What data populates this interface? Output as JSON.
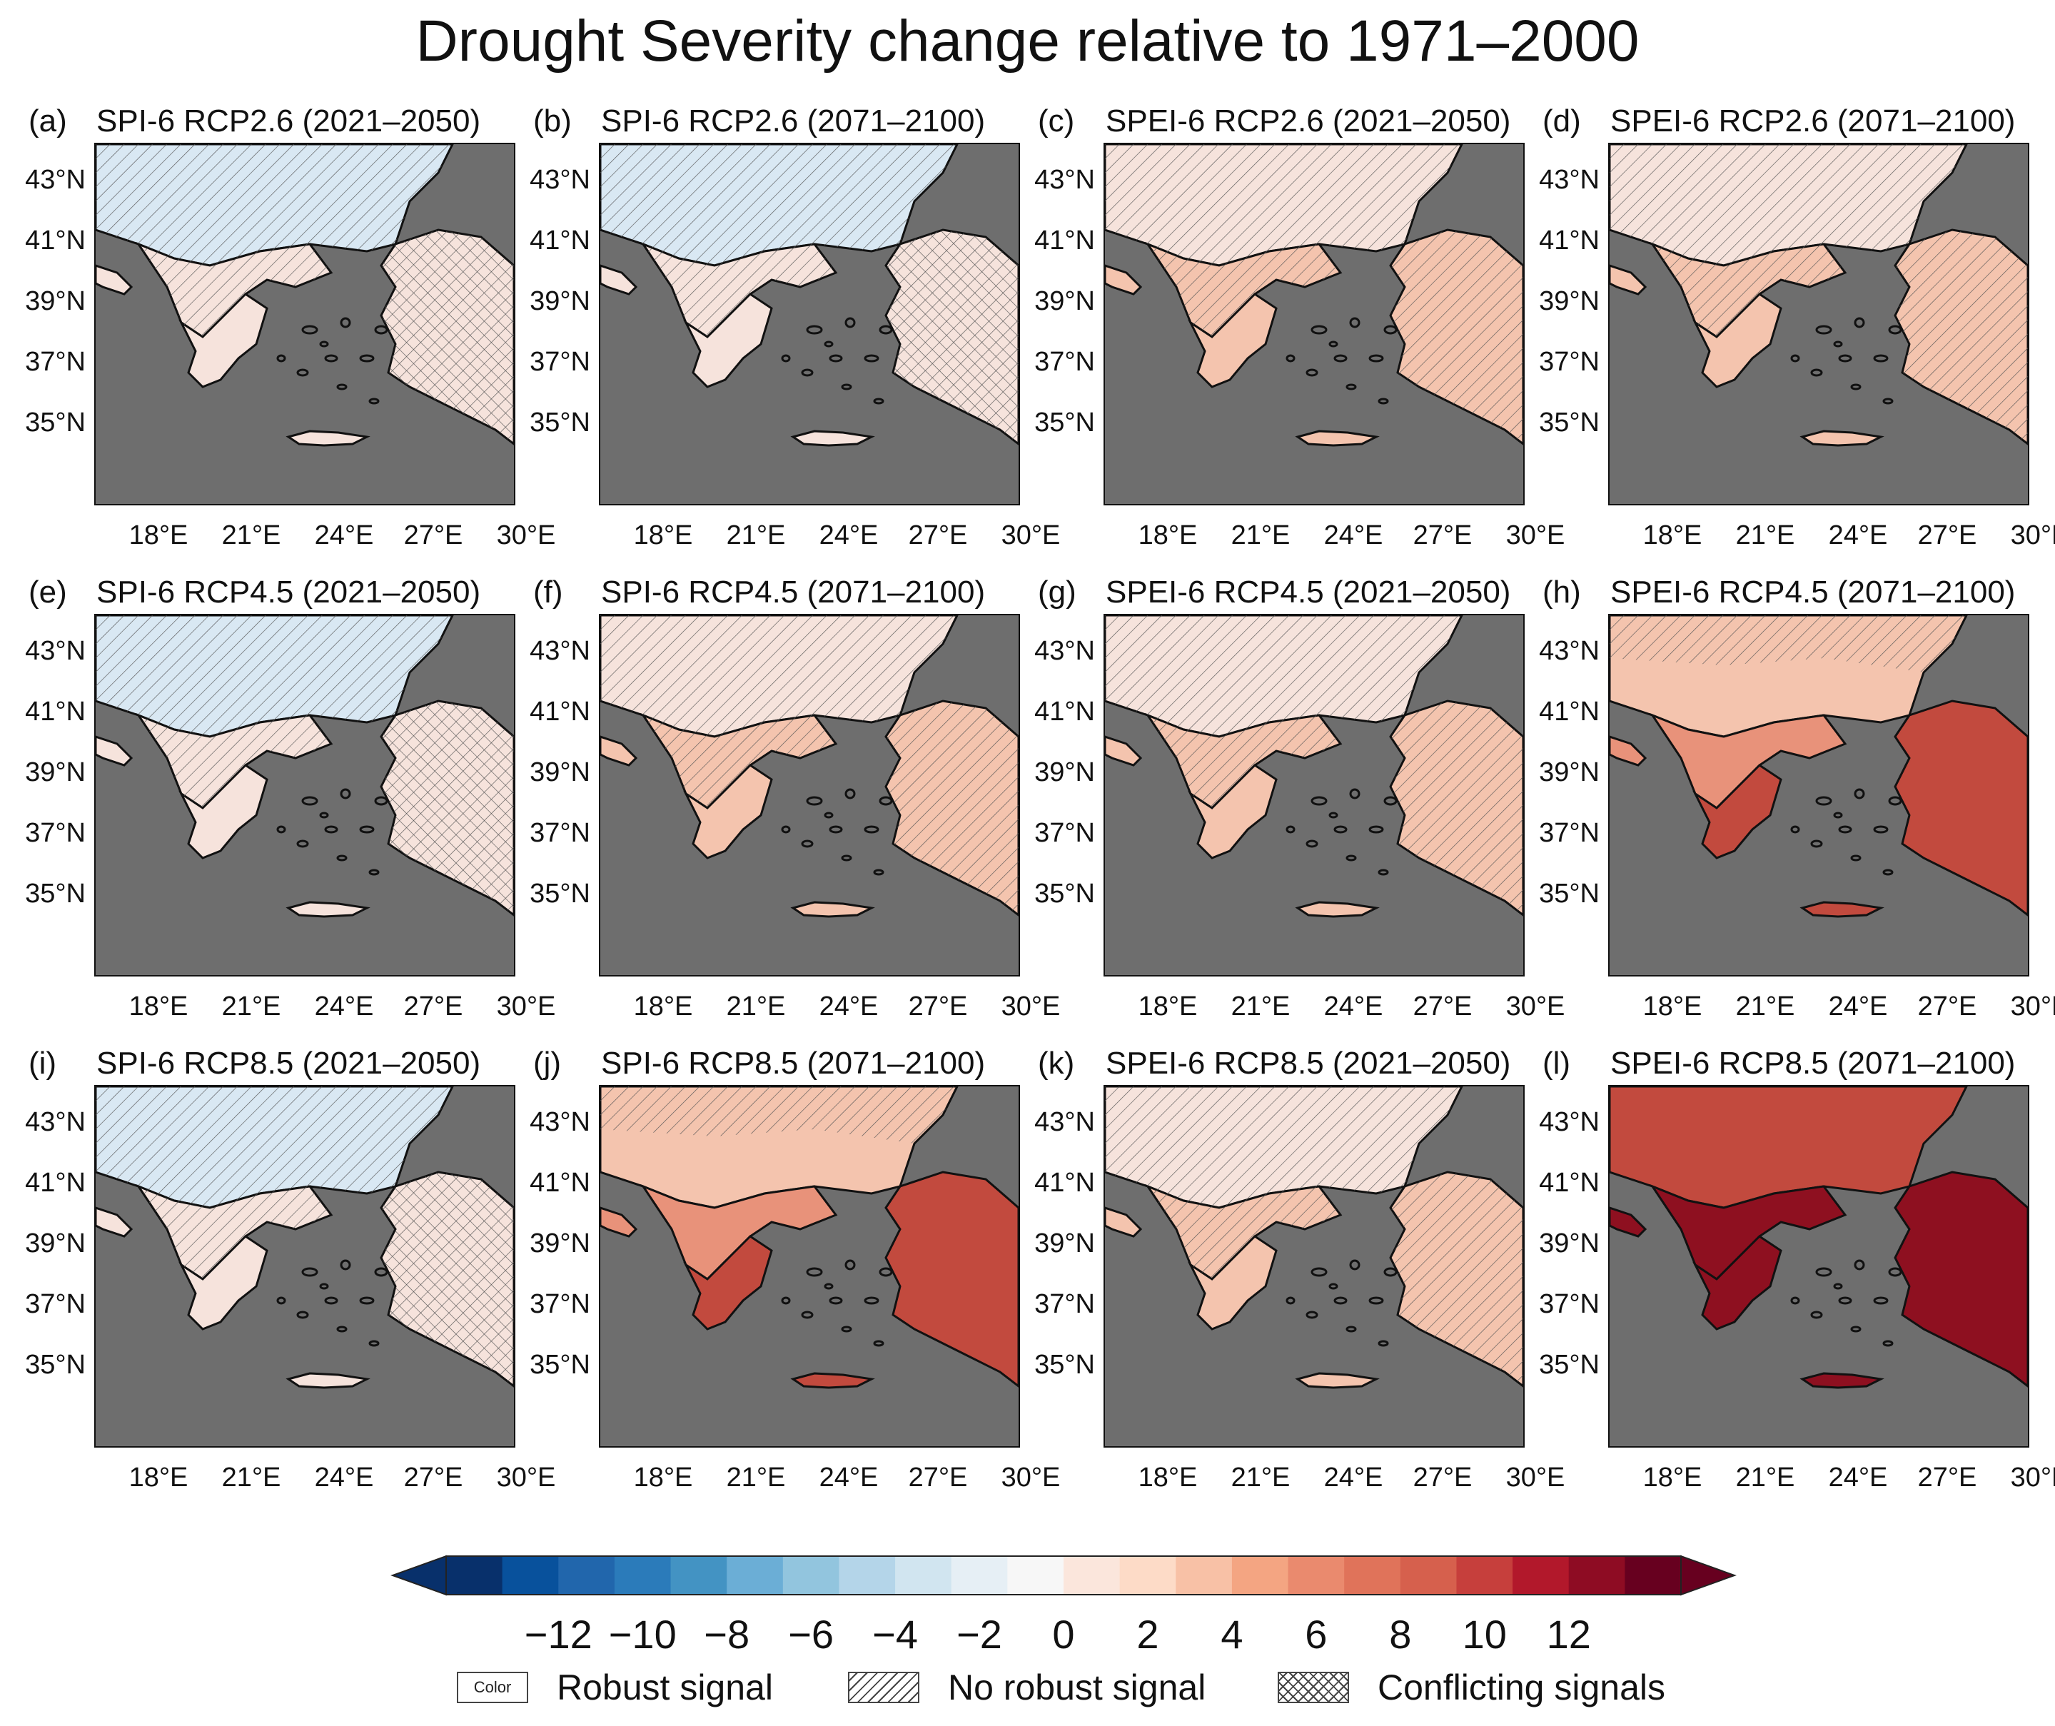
{
  "title": "Drought Severity change relative to 1971–2000",
  "panels": [
    {
      "letter": "(a)",
      "title": "SPI-6 RCP2.6 (2021–2050)",
      "intensity": 1
    },
    {
      "letter": "(b)",
      "title": "SPI-6 RCP2.6 (2071–2100)",
      "intensity": 1
    },
    {
      "letter": "(c)",
      "title": "SPEI-6 RCP2.6 (2021–2050)",
      "intensity": 2
    },
    {
      "letter": "(d)",
      "title": "SPEI-6 RCP2.6 (2071–2100)",
      "intensity": 2
    },
    {
      "letter": "(e)",
      "title": "SPI-6 RCP4.5 (2021–2050)",
      "intensity": 1
    },
    {
      "letter": "(f)",
      "title": "SPI-6 RCP4.5 (2071–2100)",
      "intensity": 2
    },
    {
      "letter": "(g)",
      "title": "SPEI-6 RCP4.5 (2021–2050)",
      "intensity": 2
    },
    {
      "letter": "(h)",
      "title": "SPEI-6 RCP4.5 (2071–2100)",
      "intensity": 3
    },
    {
      "letter": "(i)",
      "title": "SPI-6 RCP8.5 (2021–2050)",
      "intensity": 1
    },
    {
      "letter": "(j)",
      "title": "SPI-6 RCP8.5 (2071–2100)",
      "intensity": 3
    },
    {
      "letter": "(k)",
      "title": "SPEI-6 RCP8.5 (2021–2050)",
      "intensity": 2
    },
    {
      "letter": "(l)",
      "title": "SPEI-6 RCP8.5 (2071–2100)",
      "intensity": 4
    }
  ],
  "lat_labels": [
    "43°N",
    "41°N",
    "39°N",
    "37°N",
    "35°N"
  ],
  "lon_labels": [
    "18°E",
    "21°E",
    "24°E",
    "27°E",
    "30°E"
  ],
  "colorbar": {
    "ticks": [
      "−12",
      "−10",
      "−8",
      "−6",
      "−4",
      "−2",
      "0",
      "2",
      "4",
      "6",
      "8",
      "10",
      "12"
    ],
    "colors": [
      "#08306b",
      "#08519c",
      "#2166ac",
      "#2b7bba",
      "#4393c3",
      "#6baed6",
      "#92c5de",
      "#b4d5e9",
      "#d1e5f0",
      "#e6eff5",
      "#f7f7f7",
      "#fbe6dc",
      "#fddbc7",
      "#f8c1a6",
      "#f4a582",
      "#ea8a6e",
      "#e0735a",
      "#d6604d",
      "#c63f3c",
      "#b2182b",
      "#8e0c23",
      "#67001f"
    ]
  },
  "legend": {
    "robust_box": "Color",
    "robust": "Robust signal",
    "no_robust": "No robust signal",
    "conflicting": "Conflicting signals"
  },
  "fill_colors": {
    "sea": "#6e6e6e",
    "weak": "#f6e3dc",
    "mild": "#f4c4ae",
    "moderate": "#e8927a",
    "strong": "#c24a3e",
    "severe": "#8e1020",
    "blueish": "#d9e8f3"
  }
}
